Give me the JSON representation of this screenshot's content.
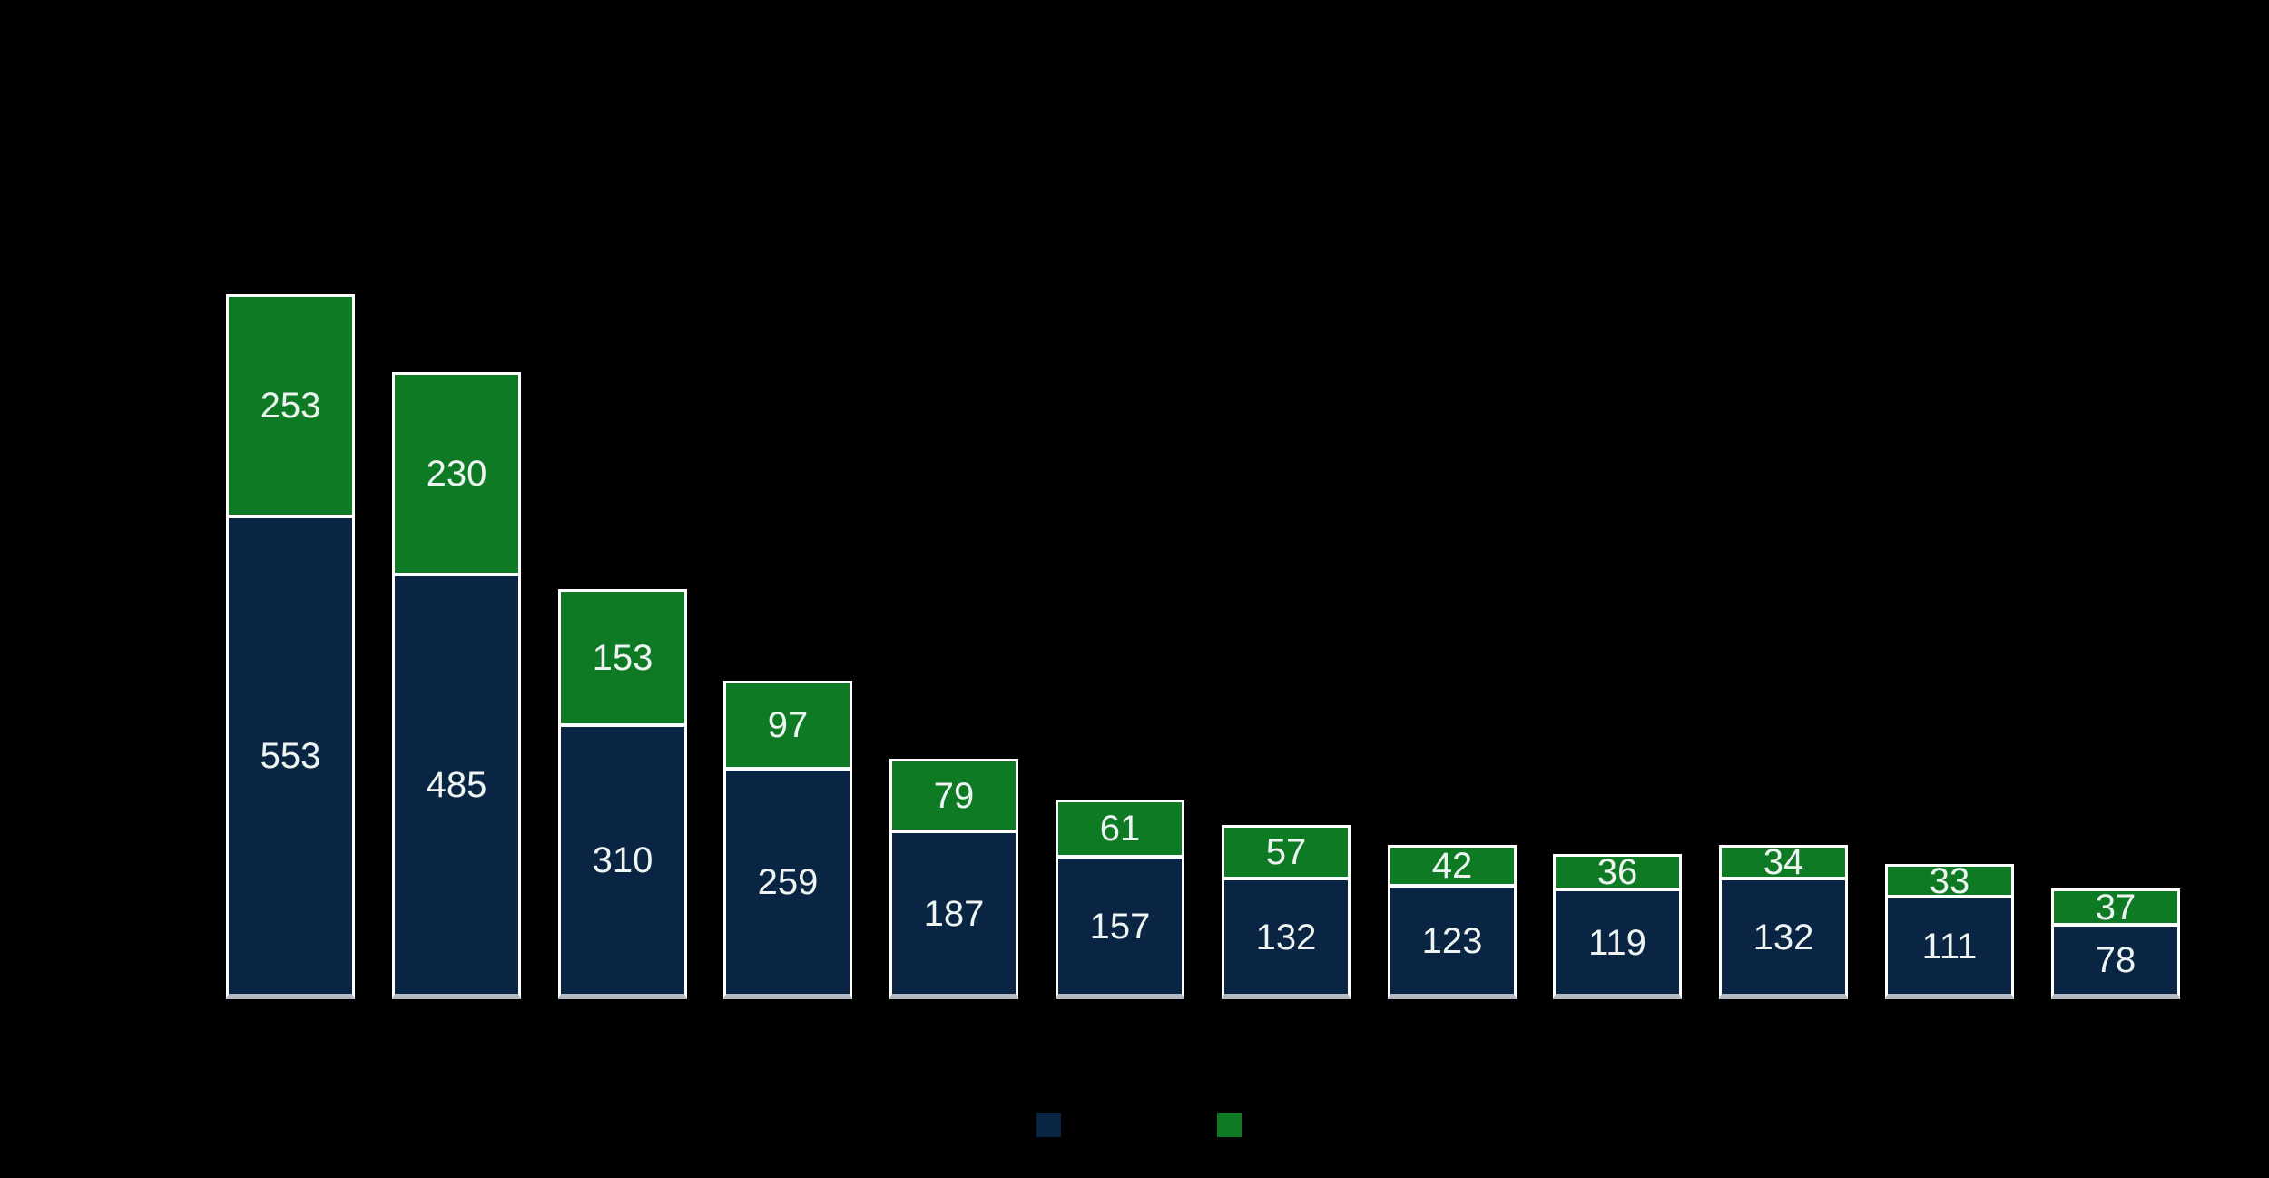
{
  "app": {
    "background_color": "#000000"
  },
  "colors": {
    "navy": "#0a2443",
    "green": "#0e7a23",
    "bar_border": "#ffffff",
    "bar_base_strip": "#b4bac2",
    "label_text": "#edf4f1"
  },
  "legend": {
    "position": "bottom",
    "swatches": [
      {
        "name": "navy-series-swatch",
        "color": "#0a2443"
      },
      {
        "name": "green-series-swatch",
        "color": "#0e7a23"
      }
    ]
  },
  "chart_data": {
    "type": "bar",
    "stacked": true,
    "title": "",
    "xlabel": "",
    "ylabel": "",
    "categories": [
      "",
      "",
      "",
      "",
      "",
      "",
      "",
      "",
      "",
      "",
      "",
      ""
    ],
    "series": [
      {
        "name": "navy-series",
        "color": "#0a2443",
        "values": [
          553,
          485,
          310,
          259,
          187,
          157,
          132,
          123,
          119,
          132,
          111,
          78
        ]
      },
      {
        "name": "green-series",
        "color": "#0e7a23",
        "values": [
          253,
          230,
          153,
          97,
          79,
          61,
          57,
          42,
          36,
          34,
          33,
          37
        ]
      }
    ],
    "totals": [
      806,
      715,
      463,
      356,
      266,
      218,
      189,
      165,
      155,
      166,
      144,
      115
    ],
    "data_labels": true,
    "grid": false,
    "axes_visible": false,
    "legend_position": "bottom",
    "background": "#000000"
  }
}
